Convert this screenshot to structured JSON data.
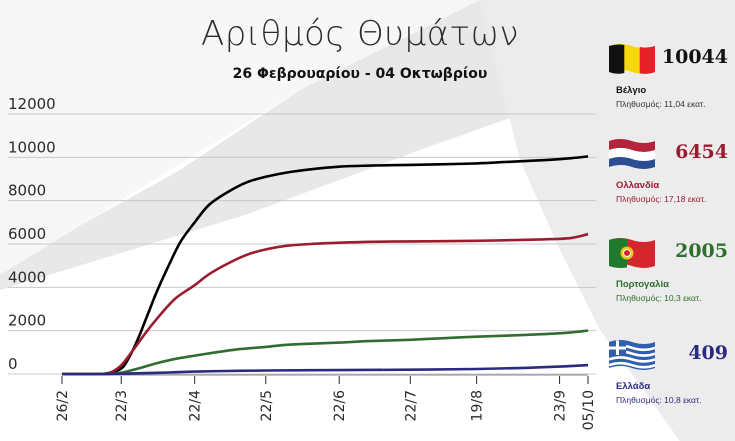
{
  "header": {
    "title": "Αριθμός Θυμάτων",
    "subtitle": "26 Φεβρουαρίου - 04 Οκτωβρίου"
  },
  "colors": {
    "belgium": "#000000",
    "netherlands": "#9b1b30",
    "portugal": "#2f6e2f",
    "greece": "#2a2a80",
    "grid": "#c8c8c8",
    "background_shape": "#e6e6e6"
  },
  "countries": [
    {
      "id": "belgium",
      "name": "Βέλγιο",
      "deaths": "10044",
      "population": "Πληθυσμός: 11,04 εκατ.",
      "flag_icon": "belgium-flag-icon"
    },
    {
      "id": "netherlands",
      "name": "Ολλανδία",
      "deaths": "6454",
      "population": "Πληθυσμός: 17,18 εκατ.",
      "flag_icon": "netherlands-flag-icon"
    },
    {
      "id": "portugal",
      "name": "Πορτογαλία",
      "deaths": "2005",
      "population": "Πληθυσμός: 10,3 εκατ.",
      "flag_icon": "portugal-flag-icon"
    },
    {
      "id": "greece",
      "name": "Ελλάδα",
      "deaths": "409",
      "population": "Πληθυσμός: 10,8 εκατ.",
      "flag_icon": "greece-flag-icon"
    }
  ],
  "chart_data": {
    "type": "line",
    "title": "Αριθμός Θυμάτων",
    "subtitle": "26 Φεβρουαρίου - 04 Οκτωβρίου",
    "xlabel": "",
    "ylabel": "",
    "x_tick_labels": [
      "26/2",
      "22/3",
      "22/4",
      "22/5",
      "22/6",
      "22/7",
      "19/8",
      "23/9",
      "05/10"
    ],
    "x_tick_days": [
      0,
      25,
      56,
      86,
      117,
      147,
      175,
      210,
      222
    ],
    "y_tick_labels": [
      "0",
      "2000",
      "4000",
      "6000",
      "8000",
      "10000",
      "12000"
    ],
    "y_ticks": [
      0,
      2000,
      4000,
      6000,
      8000,
      10000,
      12000
    ],
    "ylim": [
      0,
      12000
    ],
    "grid": true,
    "legend": "right-side panel",
    "series": [
      {
        "name": "Βέλγιο",
        "color": "#000000",
        "x": [
          0,
          15,
          20,
          25,
          28,
          32,
          36,
          40,
          45,
          50,
          56,
          62,
          70,
          78,
          86,
          95,
          105,
          117,
          130,
          147,
          160,
          175,
          190,
          205,
          215,
          222
        ],
        "y": [
          0,
          0,
          50,
          250,
          700,
          1600,
          2700,
          3800,
          5000,
          6100,
          7000,
          7800,
          8400,
          8850,
          9100,
          9300,
          9450,
          9570,
          9620,
          9650,
          9680,
          9720,
          9800,
          9880,
          9960,
          10044
        ]
      },
      {
        "name": "Ολλανδία",
        "color": "#9b1b30",
        "x": [
          0,
          15,
          20,
          25,
          30,
          36,
          42,
          48,
          56,
          62,
          70,
          78,
          86,
          95,
          105,
          117,
          130,
          147,
          160,
          175,
          190,
          205,
          215,
          222
        ],
        "y": [
          0,
          0,
          50,
          400,
          1100,
          2000,
          2800,
          3500,
          4100,
          4600,
          5100,
          5500,
          5750,
          5920,
          6000,
          6060,
          6100,
          6120,
          6130,
          6150,
          6180,
          6220,
          6280,
          6454
        ]
      },
      {
        "name": "Πορτογαλία",
        "color": "#2f6e2f",
        "x": [
          0,
          15,
          20,
          25,
          32,
          40,
          48,
          56,
          65,
          75,
          86,
          95,
          105,
          117,
          130,
          147,
          160,
          175,
          190,
          205,
          215,
          222
        ],
        "y": [
          0,
          0,
          10,
          60,
          250,
          500,
          700,
          850,
          1000,
          1150,
          1250,
          1350,
          1400,
          1450,
          1520,
          1580,
          1650,
          1720,
          1780,
          1850,
          1920,
          2005
        ]
      },
      {
        "name": "Ελλάδα",
        "color": "#2a2a80",
        "x": [
          0,
          15,
          20,
          25,
          35,
          45,
          56,
          70,
          86,
          117,
          147,
          175,
          195,
          210,
          222
        ],
        "y": [
          0,
          0,
          5,
          15,
          40,
          70,
          110,
          140,
          160,
          180,
          200,
          230,
          280,
          340,
          409
        ]
      }
    ]
  }
}
